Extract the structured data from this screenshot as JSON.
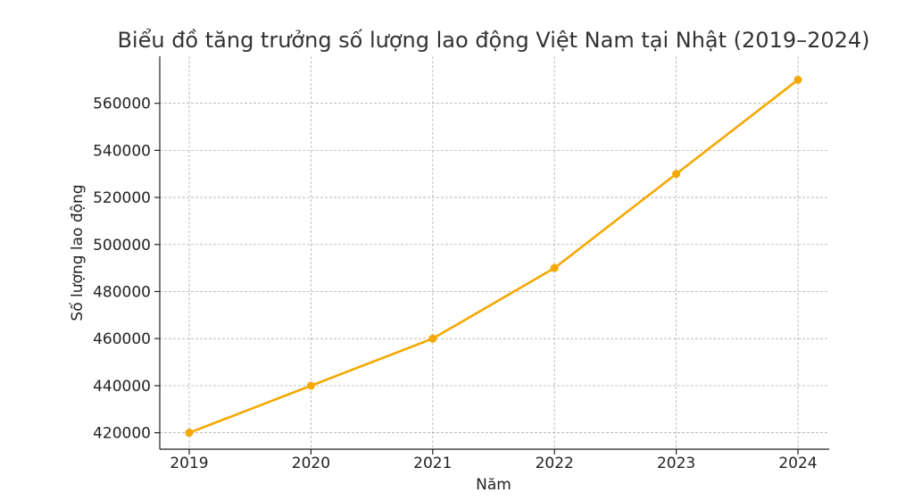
{
  "chart_data": {
    "type": "line",
    "title": "Biểu đồ tăng trưởng số lượng lao động Việt Nam tại Nhật (2019–2024)",
    "xlabel": "Năm",
    "ylabel": "Số lượng lao động",
    "x": [
      "2019",
      "2020",
      "2021",
      "2022",
      "2023",
      "2024"
    ],
    "series": [
      {
        "values": [
          420000,
          440000,
          460000,
          490000,
          530000,
          570000
        ],
        "color": "#F5A800"
      }
    ],
    "yticks": [
      "420000",
      "440000",
      "460000",
      "480000",
      "500000",
      "520000",
      "540000",
      "560000"
    ],
    "ylim": [
      413000,
      580000
    ],
    "grid": true,
    "legend": "none"
  }
}
